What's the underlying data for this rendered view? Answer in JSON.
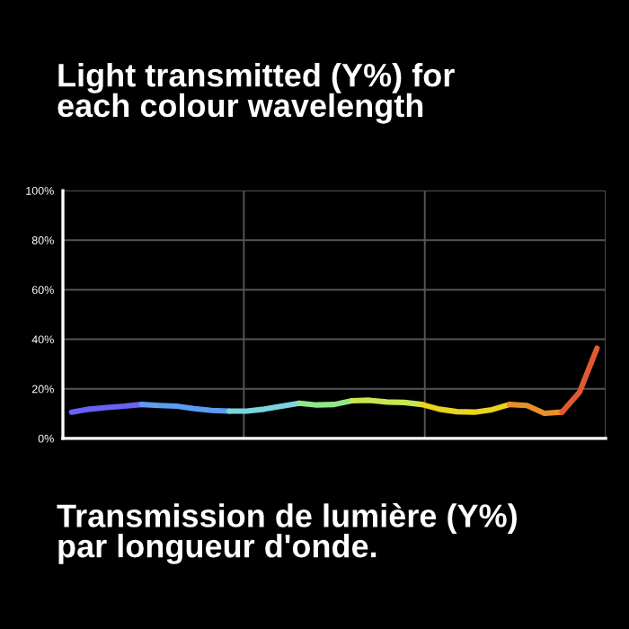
{
  "chart_data": {
    "type": "line",
    "title": "Light transmitted (Y%) for\neach colour wavelength",
    "annotations": [
      "Transmission de lumière (Y%)\npar longueur d'onde."
    ],
    "categories": [
      null,
      null,
      null,
      null,
      null,
      null,
      null,
      null,
      null,
      null,
      null,
      null,
      null,
      null,
      null,
      null,
      null,
      null,
      null,
      null,
      null,
      null,
      null,
      null,
      null,
      null,
      null,
      null,
      null,
      null,
      null
    ],
    "series": [
      {
        "color": "#6a62f2",
        "values": [
          10.6,
          11.8,
          12.5,
          13,
          13.7,
          null,
          null,
          null,
          null,
          null,
          null,
          null,
          null,
          null,
          null,
          null,
          null,
          null,
          null,
          null,
          null,
          null,
          null,
          null,
          null,
          null,
          null,
          null,
          null,
          null,
          null
        ]
      },
      {
        "color": "#5c9cf2",
        "values": [
          null,
          null,
          null,
          null,
          13.7,
          13.3,
          13,
          12,
          11.3,
          11,
          null,
          null,
          null,
          null,
          null,
          null,
          null,
          null,
          null,
          null,
          null,
          null,
          null,
          null,
          null,
          null,
          null,
          null,
          null,
          null,
          null
        ]
      },
      {
        "color": "#7ad4dc",
        "values": [
          null,
          null,
          null,
          null,
          null,
          null,
          null,
          null,
          null,
          11,
          11,
          11.8,
          13,
          14.2,
          null,
          null,
          null,
          null,
          null,
          null,
          null,
          null,
          null,
          null,
          null,
          null,
          null,
          null,
          null,
          null,
          null
        ]
      },
      {
        "color": "#8ee88a",
        "values": [
          null,
          null,
          null,
          null,
          null,
          null,
          null,
          null,
          null,
          null,
          null,
          null,
          null,
          14.2,
          13.5,
          13.7,
          15.2,
          null,
          null,
          null,
          null,
          null,
          null,
          null,
          null,
          null,
          null,
          null,
          null,
          null,
          null
        ]
      },
      {
        "color": "#c8e650",
        "values": [
          null,
          null,
          null,
          null,
          null,
          null,
          null,
          null,
          null,
          null,
          null,
          null,
          null,
          null,
          null,
          null,
          15.2,
          15.4,
          14.7,
          14.5,
          13.7,
          null,
          null,
          null,
          null,
          null,
          null,
          null,
          null,
          null,
          null
        ]
      },
      {
        "color": "#ecd41c",
        "values": [
          null,
          null,
          null,
          null,
          null,
          null,
          null,
          null,
          null,
          null,
          null,
          null,
          null,
          null,
          null,
          null,
          null,
          null,
          null,
          null,
          13.7,
          11.8,
          10.8,
          10.6,
          11.6,
          13.7,
          null,
          null,
          null,
          null,
          null
        ]
      },
      {
        "color": "#e8902a",
        "values": [
          null,
          null,
          null,
          null,
          null,
          null,
          null,
          null,
          null,
          null,
          null,
          null,
          null,
          null,
          null,
          null,
          null,
          null,
          null,
          null,
          null,
          null,
          null,
          null,
          null,
          13.7,
          13.3,
          10.1,
          10.6,
          null,
          null
        ]
      },
      {
        "color": "#e05a30",
        "values": [
          null,
          null,
          null,
          null,
          null,
          null,
          null,
          null,
          null,
          null,
          null,
          null,
          null,
          null,
          null,
          null,
          null,
          null,
          null,
          null,
          null,
          null,
          null,
          null,
          null,
          null,
          null,
          null,
          10.6,
          18.6,
          36.4
        ]
      }
    ],
    "ylim": [
      0,
      100
    ],
    "yticks": [
      {
        "value": 0,
        "label": "0%"
      },
      {
        "value": 20,
        "label": "20%"
      },
      {
        "value": 40,
        "label": "40%"
      },
      {
        "value": 60,
        "label": "60%"
      },
      {
        "value": 80,
        "label": "80%"
      },
      {
        "value": 100,
        "label": "100%"
      }
    ],
    "tick_labels": "y",
    "grid": true
  }
}
